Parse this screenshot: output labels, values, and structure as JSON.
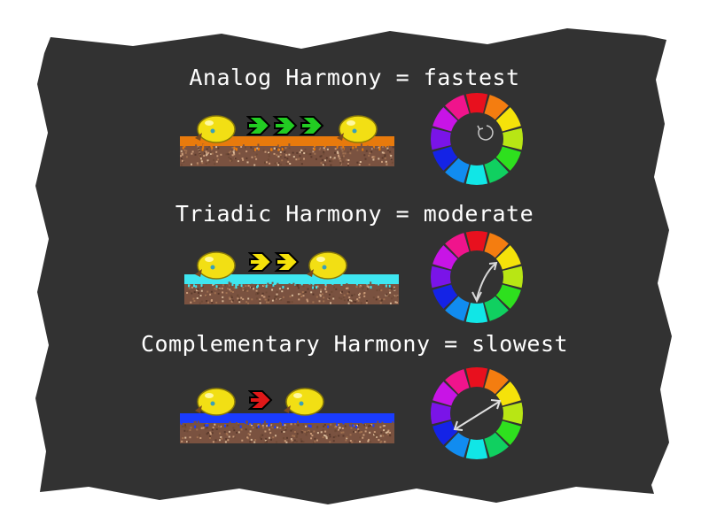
{
  "rows": [
    {
      "id": "analog",
      "title": "Analog Harmony = fastest",
      "speed_arrows": 3,
      "arrow_color": "#22cc22",
      "ground_color": "#e87a0c",
      "wheel_marker": "short-arc"
    },
    {
      "id": "triadic",
      "title": "Triadic Harmony = moderate",
      "speed_arrows": 2,
      "arrow_color": "#f5e20a",
      "ground_color": "#3ee6f0",
      "wheel_marker": "medium-arc"
    },
    {
      "id": "complementary",
      "title": "Complementary Harmony = slowest",
      "speed_arrows": 1,
      "arrow_color": "#e01818",
      "ground_color": "#1a3cff",
      "wheel_marker": "double-arrow"
    }
  ],
  "wheel_colors": [
    "#e8101e",
    "#f47d10",
    "#f5e20a",
    "#b8e614",
    "#2ee01e",
    "#10d060",
    "#11e6e6",
    "#118cf0",
    "#1423e6",
    "#7a14e8",
    "#c814e6",
    "#f0148c"
  ],
  "panel_color": "#323232"
}
